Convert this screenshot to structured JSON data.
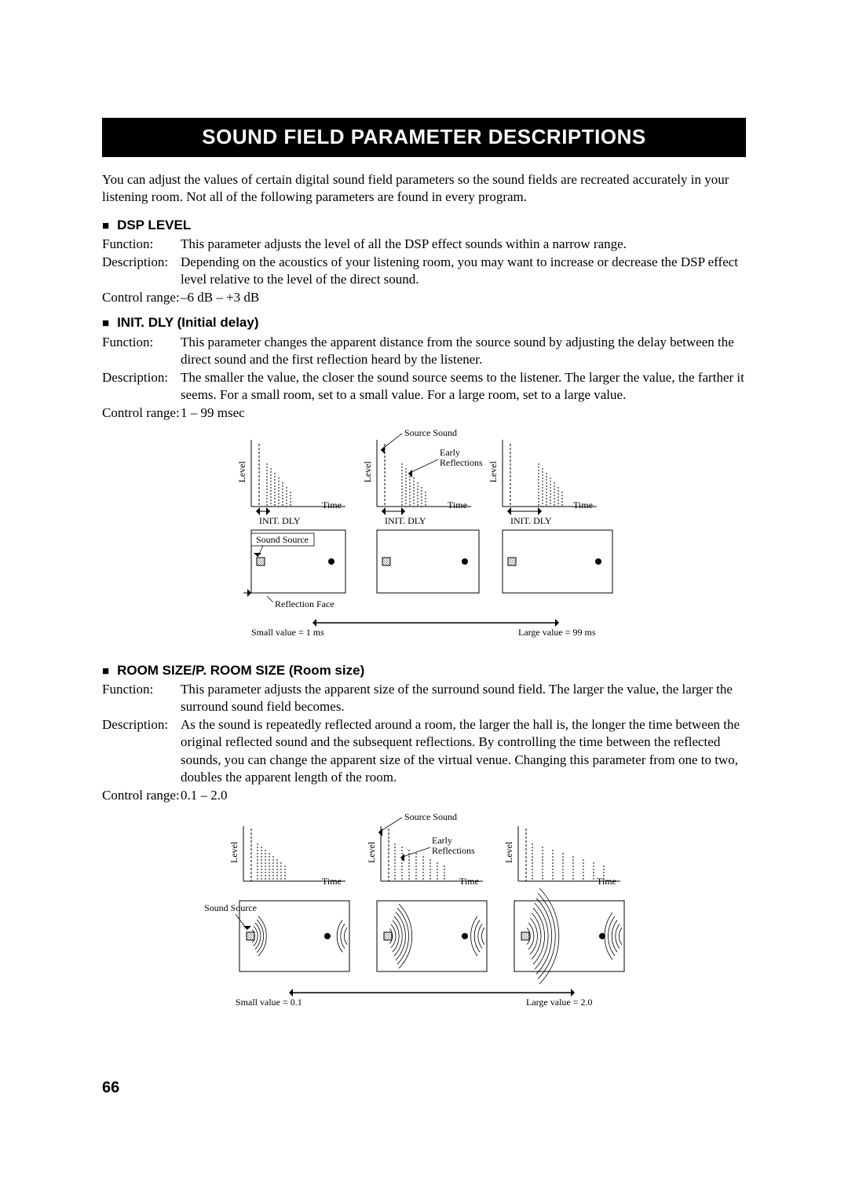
{
  "page_title": "SOUND FIELD PARAMETER DESCRIPTIONS",
  "intro": "You can adjust the values of certain digital sound field parameters so the sound fields are recreated accurately in your listening room. Not all of the following parameters are found in every program.",
  "sections": [
    {
      "heading": "DSP LEVEL",
      "rows": [
        {
          "label": "Function:",
          "value": "This parameter adjusts the level of all the DSP effect sounds within a narrow range."
        },
        {
          "label": "Description:",
          "value": "Depending on the acoustics of your listening room, you may want to increase or decrease the DSP effect level relative to the level of the direct sound."
        },
        {
          "label": "Control range:",
          "value": "–6 dB – +3 dB"
        }
      ]
    },
    {
      "heading": "INIT. DLY (Initial delay)",
      "rows": [
        {
          "label": "Function:",
          "value": "This parameter changes the apparent distance from the source sound by adjusting the delay between the direct sound and the first reflection heard by the listener."
        },
        {
          "label": "Description:",
          "value": "The smaller the value, the closer the sound source seems to the listener. The larger the value, the farther it seems. For a small room, set to a small value. For a large room, set to a large value."
        },
        {
          "label": "Control range:",
          "value": "1 – 99 msec"
        }
      ]
    },
    {
      "heading": "ROOM SIZE/P. ROOM SIZE (Room size)",
      "rows": [
        {
          "label": "Function:",
          "value": "This parameter adjusts the apparent size of the surround sound field. The larger the value, the larger the surround sound field becomes."
        },
        {
          "label": "Description:",
          "value": "As the sound is repeatedly reflected around a room, the larger the hall is, the longer the time between the original reflected sound and the subsequent reflections. By controlling the time between the reflected sounds, you can change the apparent size of the virtual venue. Changing this parameter from one to two, doubles the apparent length of the room."
        },
        {
          "label": "Control range:",
          "value": "0.1 – 2.0"
        }
      ]
    }
  ],
  "diagram1": {
    "label_level": "Level",
    "label_time": "Time",
    "label_initdly": "INIT. DLY",
    "label_source_sound": "Source Sound",
    "label_early_refl1": "Early",
    "label_early_refl2": "Reflections",
    "label_sound_source": "Sound Source",
    "label_reflection_face": "Reflection Face",
    "label_small": "Small value = 1 ms",
    "label_large": "Large value = 99 ms",
    "axis_color": "#000000",
    "dashed_color": "#000000",
    "box_stroke": "#000000",
    "font_family": "Times New Roman",
    "font_size_small": 12,
    "panels": [
      {
        "init_gap": 10,
        "reflection_count": 7,
        "reflection_spacing": 5
      },
      {
        "init_gap": 22,
        "reflection_count": 7,
        "reflection_spacing": 5
      },
      {
        "init_gap": 36,
        "reflection_count": 7,
        "reflection_spacing": 5
      }
    ]
  },
  "diagram2": {
    "label_level": "Level",
    "label_time": "Time",
    "label_source_sound": "Source Sound",
    "label_early_refl1": "Early",
    "label_early_refl2": "Reflections",
    "label_sound_source": "Sound Source",
    "label_small": "Small value = 0.1",
    "label_large": "Large value = 2.0",
    "axis_color": "#000000",
    "font_family": "Times New Roman",
    "font_size_small": 12,
    "panels": [
      {
        "reflection_spacing": 5,
        "reflection_count": 8
      },
      {
        "reflection_spacing": 9,
        "reflection_count": 8
      },
      {
        "reflection_spacing": 13,
        "reflection_count": 8
      }
    ]
  },
  "page_number": "66"
}
